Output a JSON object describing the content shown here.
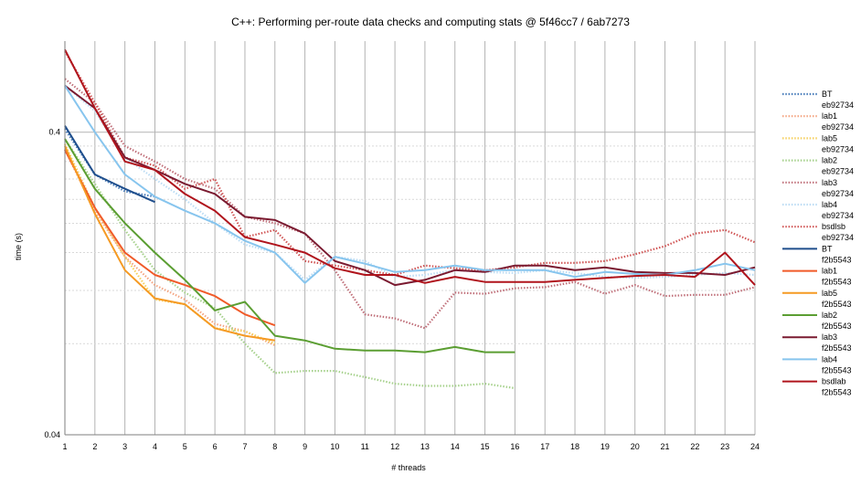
{
  "chart_data": {
    "type": "line",
    "title": "C++: Performing per-route data checks and computing stats @ 5f46cc7 / 6ab7273",
    "xlabel": "# threads",
    "ylabel": "time (s)",
    "yscale": "log",
    "xlim": [
      1,
      24
    ],
    "ylim": [
      0.04,
      0.8
    ],
    "x_ticks": [
      "1",
      "2",
      "3",
      "4",
      "5",
      "6",
      "7",
      "8",
      "9",
      "10",
      "11",
      "12",
      "13",
      "14",
      "15",
      "16",
      "17",
      "18",
      "19",
      "20",
      "21",
      "22",
      "23",
      "24"
    ],
    "y_tick_labels": [
      {
        "value": 0.04,
        "label": "0.04"
      },
      {
        "value": 0.4,
        "label": "0.4"
      }
    ],
    "legend_position": "right",
    "series": [
      {
        "name": "BT",
        "version": "eb92734",
        "color": "#4a7ebb",
        "style": "dotted",
        "x": [
          1,
          2,
          3,
          4
        ],
        "values": [
          0.41,
          0.29,
          0.255,
          0.245
        ]
      },
      {
        "name": "lab1",
        "version": "eb92734",
        "color": "#f4a582",
        "style": "dotted",
        "x": [
          1,
          2,
          3,
          4,
          5,
          6,
          7,
          8
        ],
        "values": [
          0.35,
          0.22,
          0.155,
          0.125,
          0.112,
          0.093,
          0.088,
          0.079
        ]
      },
      {
        "name": "lab5",
        "version": "eb92734",
        "color": "#f6d060",
        "style": "dotted",
        "x": [
          1,
          2,
          3,
          4,
          5,
          6,
          7,
          8
        ],
        "values": [
          0.365,
          0.225,
          0.155,
          0.112,
          0.108,
          0.09,
          0.088,
          0.08
        ]
      },
      {
        "name": "lab2",
        "version": "eb92734",
        "color": "#a6d18c",
        "style": "dotted",
        "x": [
          1,
          2,
          3,
          4,
          5,
          6,
          7,
          8,
          9,
          10,
          11,
          12,
          13,
          14,
          15,
          16
        ],
        "values": [
          0.38,
          0.27,
          0.19,
          0.14,
          0.118,
          0.105,
          0.08,
          0.064,
          0.065,
          0.065,
          0.062,
          0.059,
          0.058,
          0.058,
          0.059,
          0.057
        ]
      },
      {
        "name": "lab3",
        "version": "eb92734",
        "color": "#c0707a",
        "style": "dotted",
        "x": [
          1,
          2,
          3,
          4,
          5,
          6,
          7,
          8,
          9,
          10,
          11,
          12,
          13,
          14,
          15,
          16,
          17,
          18,
          19,
          20,
          21,
          22,
          23,
          24
        ],
        "values": [
          0.6,
          0.5,
          0.36,
          0.32,
          0.28,
          0.26,
          0.21,
          0.2,
          0.185,
          0.14,
          0.1,
          0.097,
          0.09,
          0.118,
          0.117,
          0.122,
          0.123,
          0.128,
          0.117,
          0.125,
          0.115,
          0.116,
          0.116,
          0.123
        ]
      },
      {
        "name": "lab4",
        "version": "eb92734",
        "color": "#bcdcf4",
        "style": "dotted",
        "x": [
          1,
          2,
          3,
          4,
          5,
          6,
          7,
          8,
          9,
          10,
          11,
          12,
          13,
          14,
          15,
          16,
          17,
          18,
          19,
          20,
          21,
          22,
          23,
          24
        ],
        "values": [
          0.57,
          0.47,
          0.33,
          0.28,
          0.24,
          0.2,
          0.17,
          0.16,
          0.13,
          0.155,
          0.15,
          0.133,
          0.135,
          0.14,
          0.138,
          0.137,
          0.14,
          0.137,
          0.133,
          0.132,
          0.133,
          0.135,
          0.137,
          0.135
        ]
      },
      {
        "name": "bsdlsb",
        "version": "eb92734",
        "color": "#d05555",
        "style": "dotted",
        "x": [
          1,
          2,
          3,
          4,
          5,
          6,
          7,
          8,
          9,
          10,
          11,
          12,
          13,
          14,
          15,
          16,
          17,
          18,
          19,
          20,
          21,
          22,
          23,
          24
        ],
        "values": [
          0.74,
          0.5,
          0.33,
          0.31,
          0.26,
          0.28,
          0.18,
          0.19,
          0.15,
          0.145,
          0.14,
          0.135,
          0.145,
          0.142,
          0.14,
          0.143,
          0.148,
          0.148,
          0.15,
          0.158,
          0.168,
          0.185,
          0.19,
          0.173
        ]
      },
      {
        "name": "BT",
        "version": "f2b5543",
        "color": "#1f4e8c",
        "style": "solid",
        "x": [
          1,
          2,
          3,
          4
        ],
        "values": [
          0.42,
          0.29,
          0.26,
          0.235
        ]
      },
      {
        "name": "lab1",
        "version": "f2b5543",
        "color": "#f05a28",
        "style": "solid",
        "x": [
          1,
          2,
          3,
          4,
          5,
          6,
          7,
          8
        ],
        "values": [
          0.35,
          0.225,
          0.16,
          0.135,
          0.125,
          0.115,
          0.1,
          0.092
        ]
      },
      {
        "name": "lab5",
        "version": "f2b5543",
        "color": "#f59a23",
        "style": "solid",
        "x": [
          1,
          2,
          3,
          4,
          5,
          6,
          7,
          8
        ],
        "values": [
          0.36,
          0.215,
          0.14,
          0.113,
          0.108,
          0.09,
          0.085,
          0.082
        ]
      },
      {
        "name": "lab2",
        "version": "f2b5543",
        "color": "#5b9e32",
        "style": "solid",
        "x": [
          1,
          2,
          3,
          4,
          5,
          6,
          7,
          8,
          9,
          10,
          11,
          12,
          13,
          14,
          15,
          16
        ],
        "values": [
          0.38,
          0.26,
          0.2,
          0.16,
          0.13,
          0.103,
          0.11,
          0.085,
          0.082,
          0.077,
          0.076,
          0.076,
          0.075,
          0.078,
          0.075,
          0.075
        ]
      },
      {
        "name": "lab3",
        "version": "f2b5543",
        "color": "#7a1a30",
        "style": "solid",
        "x": [
          1,
          2,
          3,
          4,
          5,
          6,
          7,
          8,
          9,
          10,
          11,
          12,
          13,
          14,
          15,
          16,
          17,
          18,
          19,
          20,
          21,
          22,
          23,
          24
        ],
        "values": [
          0.57,
          0.48,
          0.33,
          0.3,
          0.27,
          0.25,
          0.21,
          0.205,
          0.185,
          0.15,
          0.14,
          0.125,
          0.13,
          0.14,
          0.138,
          0.145,
          0.145,
          0.14,
          0.143,
          0.138,
          0.137,
          0.137,
          0.135,
          0.143
        ]
      },
      {
        "name": "lab4",
        "version": "f2b5543",
        "color": "#87c5ee",
        "style": "solid",
        "x": [
          1,
          2,
          3,
          4,
          5,
          6,
          7,
          8,
          9,
          10,
          11,
          12,
          13,
          14,
          15,
          16,
          17,
          18,
          19,
          20,
          21,
          22,
          23,
          24
        ],
        "values": [
          0.57,
          0.4,
          0.29,
          0.245,
          0.22,
          0.2,
          0.175,
          0.16,
          0.127,
          0.155,
          0.147,
          0.138,
          0.14,
          0.145,
          0.14,
          0.14,
          0.14,
          0.133,
          0.138,
          0.136,
          0.135,
          0.14,
          0.147,
          0.14
        ]
      },
      {
        "name": "bsdlab",
        "version": "f2b5543",
        "color": "#b0141c",
        "style": "solid",
        "x": [
          1,
          2,
          3,
          4,
          5,
          6,
          7,
          8,
          9,
          10,
          11,
          12,
          13,
          14,
          15,
          16,
          17,
          18,
          19,
          20,
          21,
          22,
          23,
          24
        ],
        "values": [
          0.75,
          0.48,
          0.32,
          0.3,
          0.25,
          0.22,
          0.18,
          0.17,
          0.16,
          0.142,
          0.135,
          0.135,
          0.127,
          0.133,
          0.128,
          0.128,
          0.128,
          0.13,
          0.132,
          0.134,
          0.135,
          0.133,
          0.16,
          0.125
        ]
      }
    ]
  }
}
